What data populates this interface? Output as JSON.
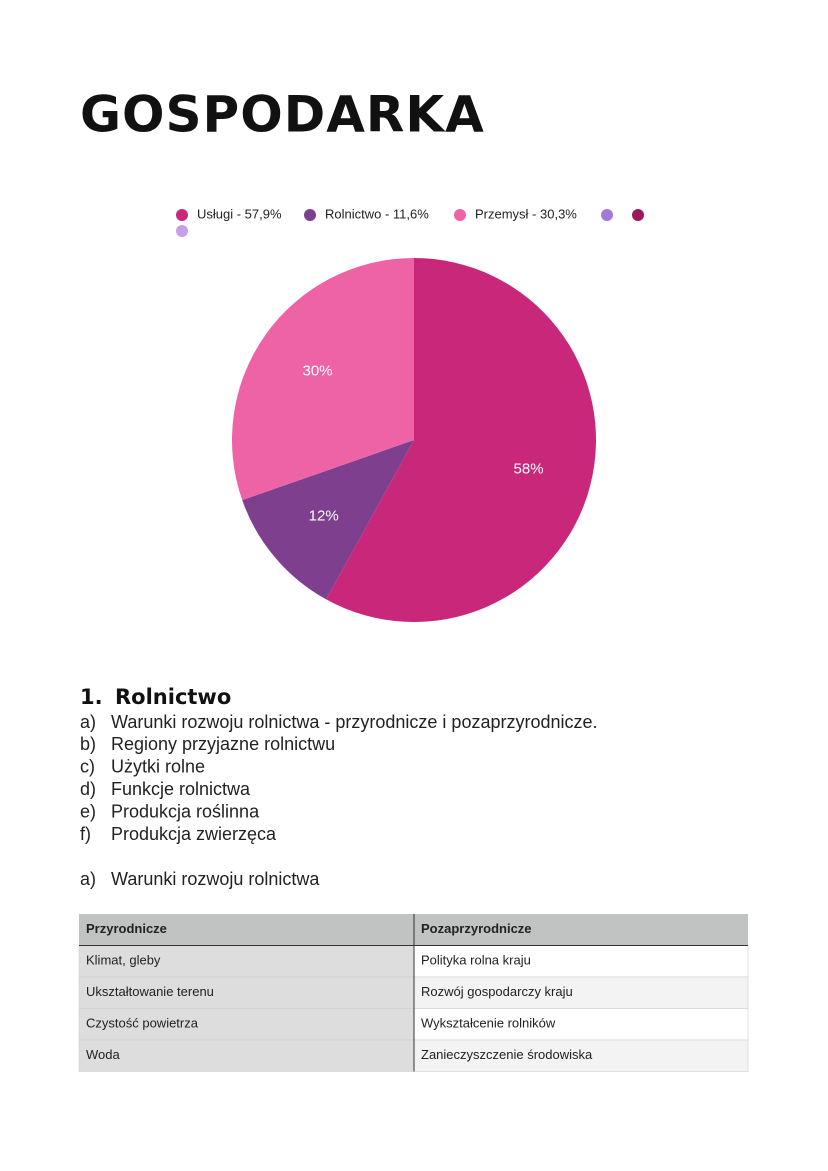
{
  "title": "GOSPODARKA",
  "chart_data": {
    "type": "pie",
    "categories": [
      "Usługi - 57,9%",
      "Rolnictwo - 11,6%",
      "Przemysł - 30,3%"
    ],
    "values": [
      57.9,
      11.6,
      30.3
    ],
    "value_labels": [
      "58%",
      "12%",
      "30%"
    ],
    "colors": [
      "#c9287a",
      "#7e3f8f",
      "#ee62a6"
    ]
  },
  "section": {
    "number": "1.",
    "title": "Rolnictwo",
    "items": [
      {
        "marker": "a)",
        "text": "Warunki rozwoju rolnictwa - przyrodnicze i pozaprzyrodnicze."
      },
      {
        "marker": "b)",
        "text": "Regiony przyjazne rolnictwu"
      },
      {
        "marker": "c)",
        "text": "Użytki rolne"
      },
      {
        "marker": "d)",
        "text": "Funkcje rolnictwa"
      },
      {
        "marker": "e)",
        "text": "Produkcja roślinna"
      },
      {
        "marker": "f)",
        "text": "Produkcja zwierzęca"
      }
    ],
    "subheading": {
      "marker": "a)",
      "text": "Warunki rozwoju rolnictwa"
    }
  },
  "table": {
    "header": [
      "Przyrodnicze",
      "Pozaprzyrodnicze"
    ],
    "rows": [
      [
        "Klimat, gleby",
        "Polityka rolna kraju"
      ],
      [
        "Ukształtowanie terenu",
        "Rozwój gospodarczy kraju"
      ],
      [
        "Czystość powietrza",
        "Wykształcenie rolników"
      ],
      [
        "Woda",
        "Zanieczyszczenie środowiska"
      ]
    ]
  }
}
